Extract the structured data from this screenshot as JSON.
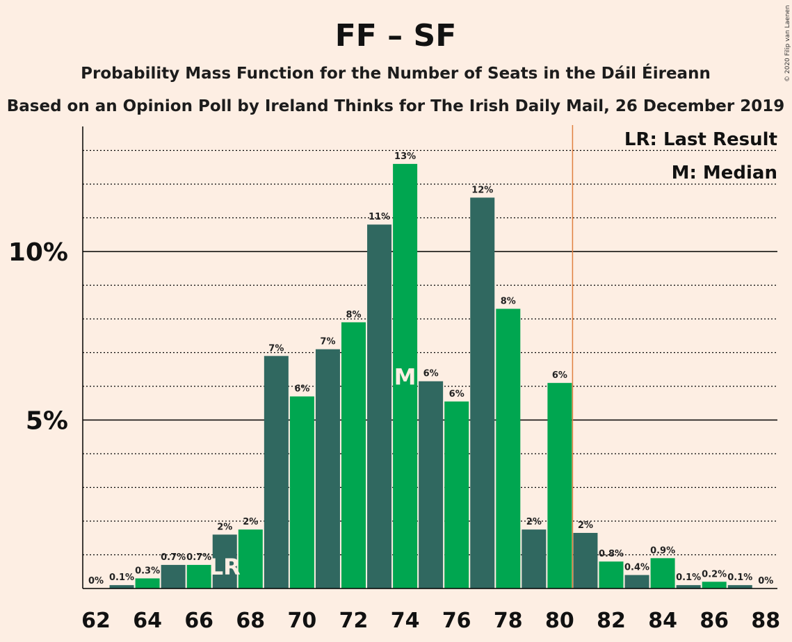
{
  "chart_data": {
    "type": "bar",
    "title": "FF – SF",
    "subtitle": "Probability Mass Function for the Number of Seats in the Dáil Éireann",
    "subtitle2": "Based on an Opinion Poll by Ireland Thinks for The Irish Daily Mail, 26 December 2019",
    "copyright": "© 2020 Filip van Laenen",
    "legend": {
      "last_result": "LR: Last Result",
      "median": "M: Median"
    },
    "x": [
      62,
      63,
      64,
      65,
      66,
      67,
      68,
      69,
      70,
      71,
      72,
      73,
      74,
      75,
      76,
      77,
      78,
      79,
      80,
      81,
      82,
      83,
      84,
      85,
      86,
      87,
      88
    ],
    "values": [
      0.0,
      0.1,
      0.3,
      0.7,
      0.7,
      1.6,
      1.75,
      6.9,
      5.7,
      7.1,
      7.9,
      10.8,
      12.6,
      6.15,
      5.55,
      11.6,
      8.3,
      1.75,
      6.1,
      1.65,
      0.8,
      0.4,
      0.9,
      0.1,
      0.2,
      0.1,
      0.0
    ],
    "value_labels": [
      "0%",
      "0.1%",
      "0.3%",
      "0.7%",
      "0.7%",
      "2%",
      "2%",
      "7%",
      "6%",
      "7%",
      "8%",
      "11%",
      "13%",
      "6%",
      "6%",
      "12%",
      "8%",
      "2%",
      "6%",
      "2%",
      "0.8%",
      "0.4%",
      "0.9%",
      "0.1%",
      "0.2%",
      "0.1%",
      "0%"
    ],
    "x_tick_labels": [
      "62",
      "64",
      "66",
      "68",
      "70",
      "72",
      "74",
      "76",
      "78",
      "80",
      "82",
      "84",
      "86",
      "88"
    ],
    "y_tick_labels": [
      "5%",
      "10%"
    ],
    "y_ticks": [
      5,
      10
    ],
    "ylim": [
      0,
      13.7
    ],
    "majority_line": 80.5,
    "last_result": 67,
    "last_result_label": "LR",
    "median": 74,
    "median_label": "M",
    "colors": {
      "background": "#FDEEE3",
      "bar_dark": "#306860",
      "bar_light": "#00A650",
      "majority_line": "#E08040"
    }
  }
}
